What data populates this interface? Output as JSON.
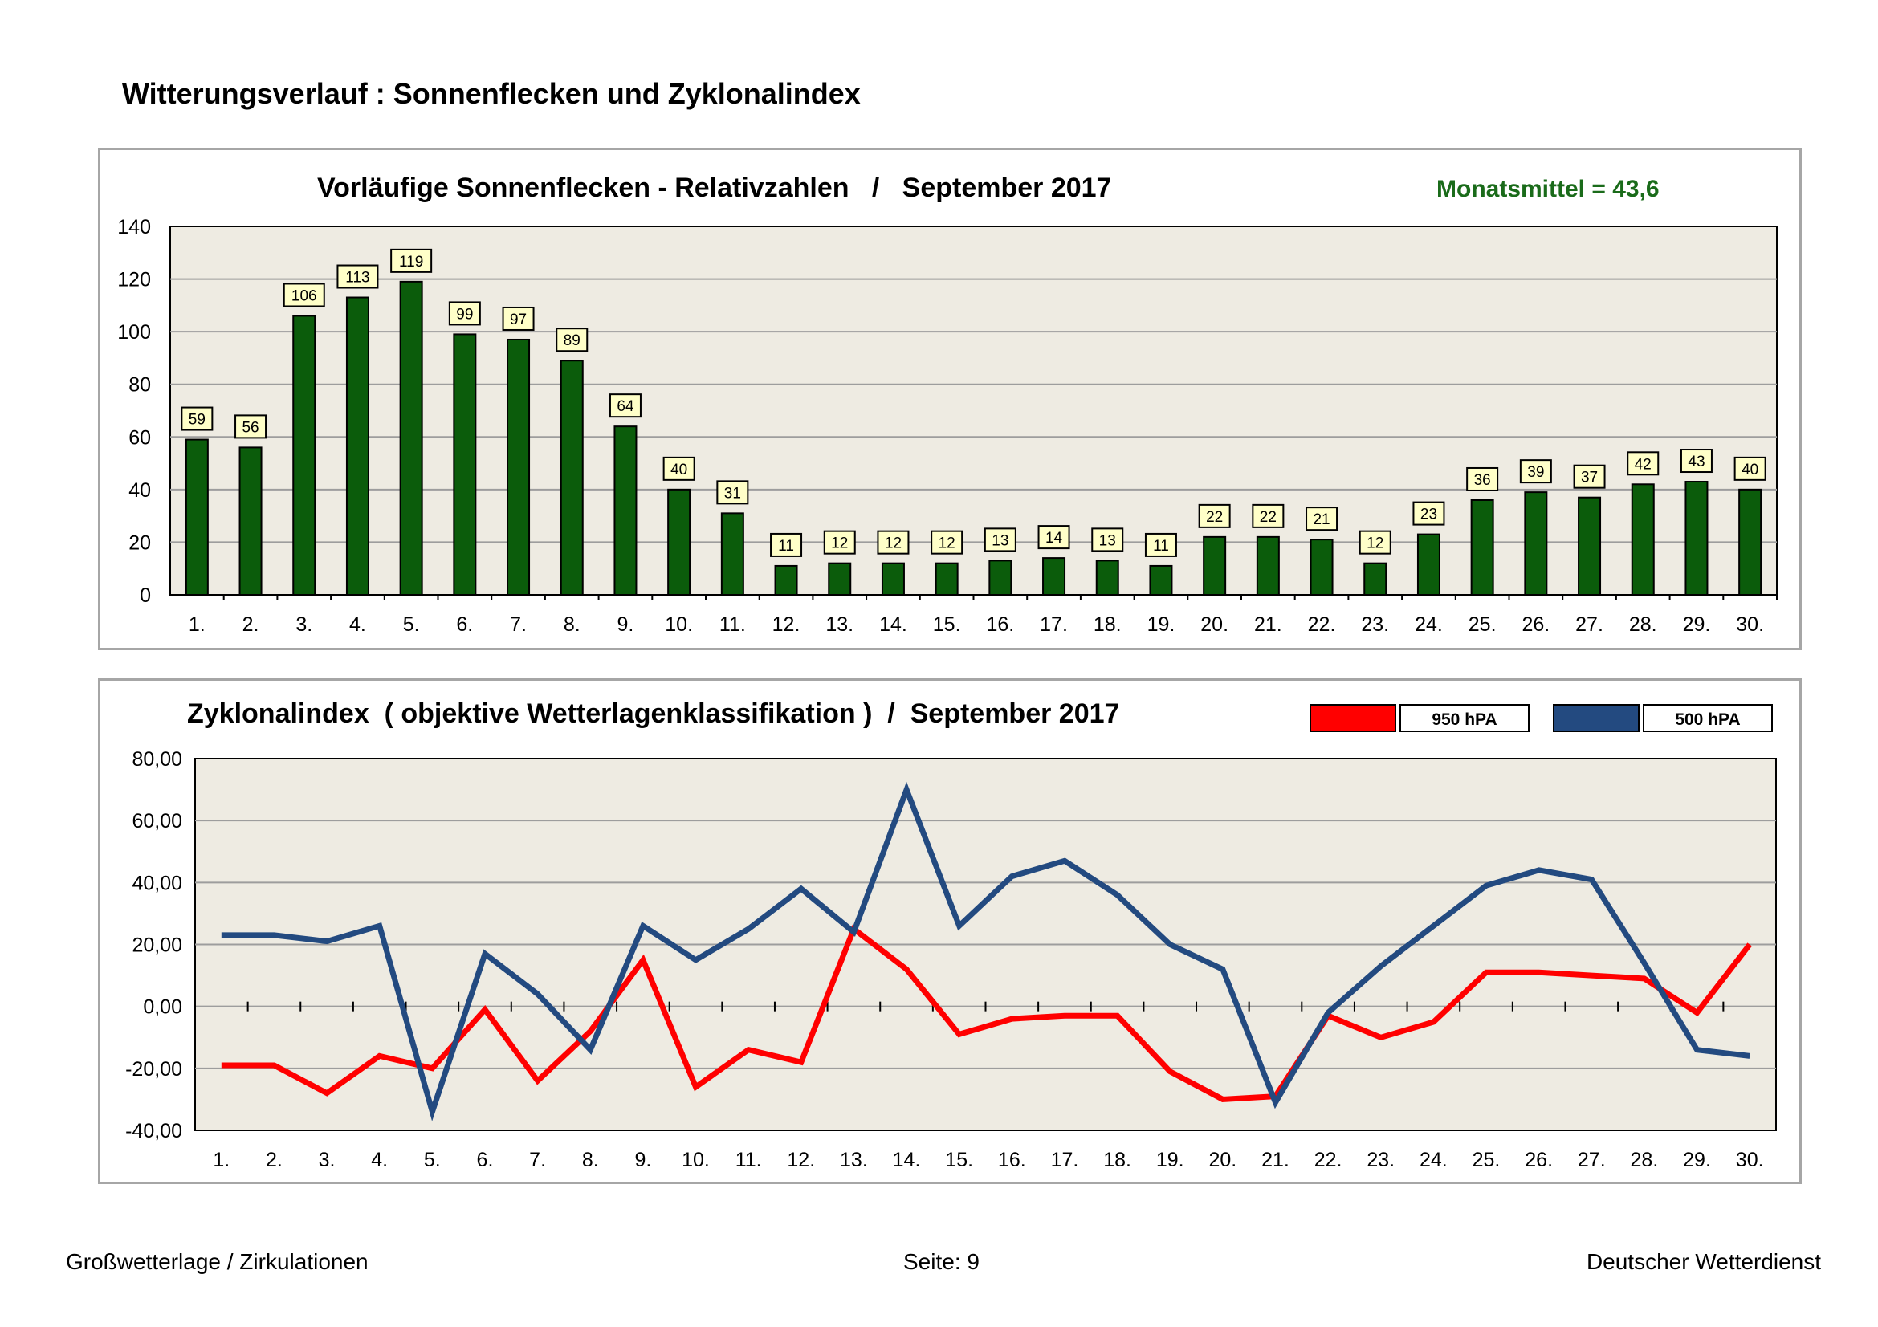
{
  "page_title": "Witterungsverlauf : Sonnenflecken und Zyklonalindex",
  "colors": {
    "bar": "#0b5c0b",
    "mean_text": "#1a6b1a",
    "plot_bg": "#eeebe2",
    "grid": "#9d9d9d",
    "label_bg": "#ffffc8",
    "s950": "#ff0000",
    "s500": "#234a80"
  },
  "chart_data": [
    {
      "type": "bar",
      "title": "Vorläufige Sonnenflecken - Relativzahlen   /   September 2017",
      "annotation": "Monatsmittel = 43,6",
      "categories": [
        "1.",
        "2.",
        "3.",
        "4.",
        "5.",
        "6.",
        "7.",
        "8.",
        "9.",
        "10.",
        "11.",
        "12.",
        "13.",
        "14.",
        "15.",
        "16.",
        "17.",
        "18.",
        "19.",
        "20.",
        "21.",
        "22.",
        "23.",
        "24.",
        "25.",
        "26.",
        "27.",
        "28.",
        "29.",
        "30."
      ],
      "values": [
        59,
        56,
        106,
        113,
        119,
        99,
        97,
        89,
        64,
        40,
        31,
        11,
        12,
        12,
        12,
        13,
        14,
        13,
        11,
        22,
        22,
        21,
        12,
        23,
        36,
        39,
        37,
        42,
        43,
        40
      ],
      "ylim": [
        0,
        140
      ],
      "yticks": [
        "0",
        "20",
        "40",
        "60",
        "80",
        "100",
        "120",
        "140"
      ],
      "grid": true,
      "xlabel": "",
      "ylabel": ""
    },
    {
      "type": "line",
      "title": "Zyklonalindex  ( objektive Wetterlagenklassifikation )  /  September 2017",
      "categories": [
        "1.",
        "2.",
        "3.",
        "4.",
        "5.",
        "6.",
        "7.",
        "8.",
        "9.",
        "10.",
        "11.",
        "12.",
        "13.",
        "14.",
        "15.",
        "16.",
        "17.",
        "18.",
        "19.",
        "20.",
        "21.",
        "22.",
        "23.",
        "24.",
        "25.",
        "26.",
        "27.",
        "28.",
        "29.",
        "30."
      ],
      "series": [
        {
          "name": "950 hPA",
          "values": [
            -19,
            -19,
            -28,
            -16,
            -20,
            -1,
            -24,
            -8,
            15,
            -26,
            -14,
            -18,
            25,
            12,
            -9,
            -4,
            -3,
            -3,
            -21,
            -30,
            -29,
            -3,
            -10,
            -5,
            11,
            11,
            10,
            9,
            -2,
            20
          ]
        },
        {
          "name": "500 hPA",
          "values": [
            23,
            23,
            21,
            26,
            -34,
            17,
            4,
            -14,
            26,
            15,
            25,
            38,
            24,
            70,
            26,
            42,
            47,
            36,
            20,
            12,
            -31,
            -2,
            13,
            26,
            39,
            44,
            41,
            14,
            -14,
            -16
          ]
        }
      ],
      "ylim": [
        -40,
        80
      ],
      "yticks": [
        "-40,00",
        "-20,00",
        "0,00",
        "20,00",
        "40,00",
        "60,00",
        "80,00"
      ],
      "grid": true,
      "legend_position": "top-right",
      "xlabel": "",
      "ylabel": ""
    }
  ],
  "footer": {
    "left": "Großwetterlage / Zirkulationen",
    "center": "Seite: 9",
    "right": "Deutscher Wetterdienst"
  }
}
